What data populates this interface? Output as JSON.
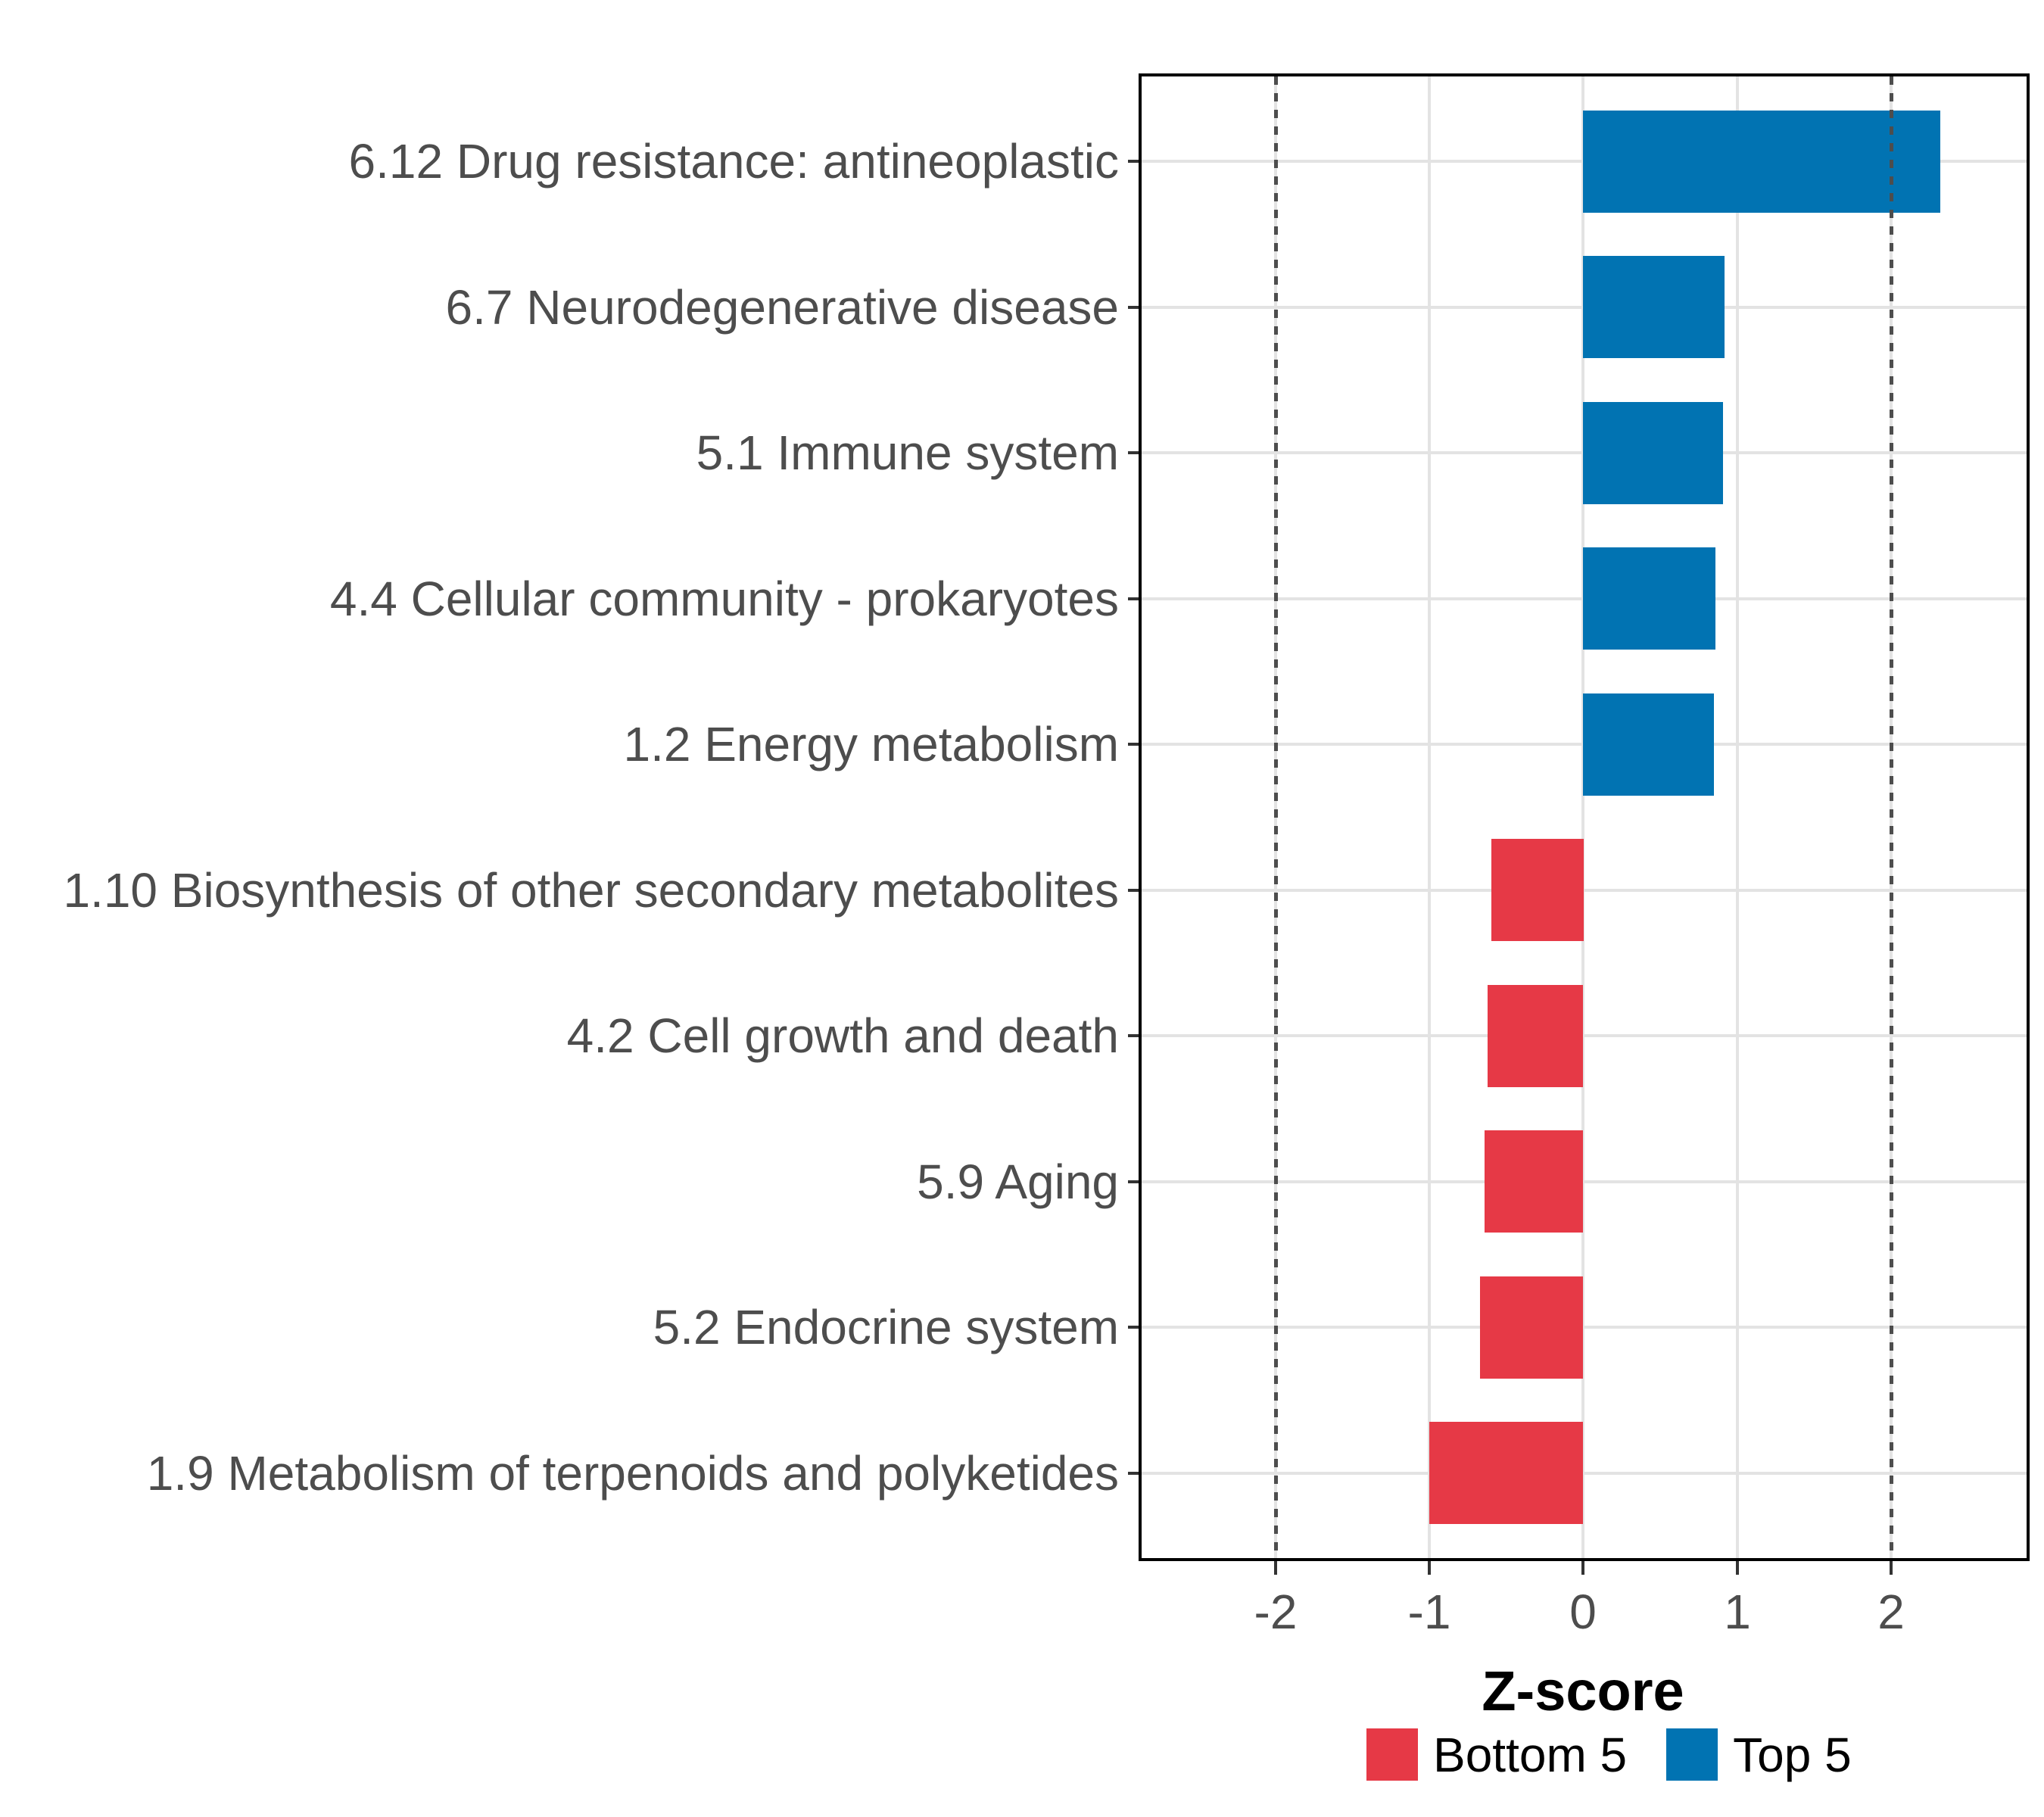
{
  "chart_data": {
    "type": "bar",
    "orientation": "horizontal",
    "title": "",
    "xlabel": "Z-score",
    "categories": [
      "6.12 Drug resistance: antineoplastic",
      "6.7 Neurodegenerative disease",
      "5.1 Immune system",
      "4.4 Cellular community - prokaryotes",
      "1.2 Energy metabolism",
      "1.10 Biosynthesis of other secondary metabolites",
      "4.2 Cell growth and death",
      "5.9 Aging",
      "5.2 Endocrine system",
      "1.9 Metabolism of terpenoids and polyketides"
    ],
    "values": [
      2.32,
      0.92,
      0.91,
      0.86,
      0.85,
      -0.6,
      -0.62,
      -0.64,
      -0.67,
      -1.0
    ],
    "groups": [
      "Top 5",
      "Top 5",
      "Top 5",
      "Top 5",
      "Top 5",
      "Bottom 5",
      "Bottom 5",
      "Bottom 5",
      "Bottom 5",
      "Bottom 5"
    ],
    "series_colors": {
      "Top 5": "#0173B2",
      "Bottom 5": "#E63946"
    },
    "x_ticks": [
      -2,
      -1,
      0,
      1,
      2
    ],
    "x_tick_labels": [
      "-2",
      "-1",
      "0",
      "1",
      "2"
    ],
    "xlim": [
      -2.87,
      2.88
    ],
    "reference_lines": [
      -2,
      2
    ],
    "grid": "major",
    "legend_position": "bottom",
    "legend": [
      {
        "label": "Bottom 5",
        "color": "#E63946"
      },
      {
        "label": "Top 5",
        "color": "#0173B2"
      }
    ]
  },
  "style_colors": {
    "grid": "#e3e3e3",
    "reference_line": "#4d4d4d",
    "axis_text": "#4d4d4d",
    "panel_border": "#000000",
    "tick": "#333333"
  }
}
